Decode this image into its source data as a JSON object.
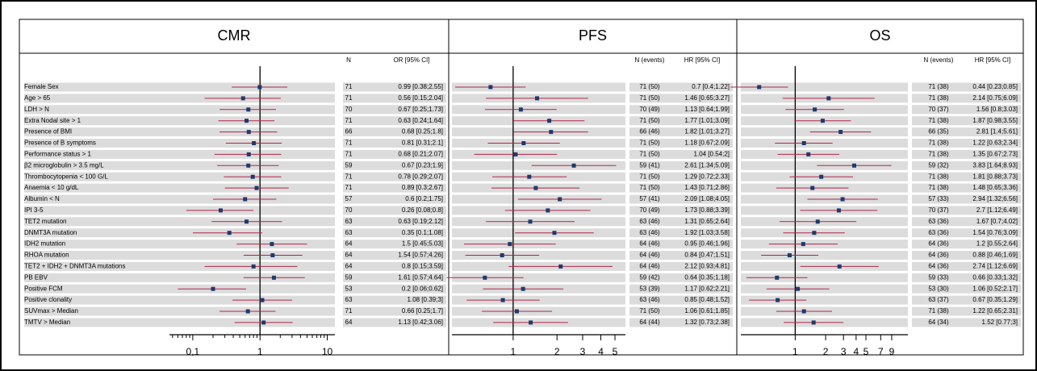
{
  "chart_data": [
    {
      "type": "forest",
      "title": "CMR",
      "column_headers": [
        "N",
        "OR [95% CI]"
      ],
      "log": true,
      "color": "#b0264a",
      "marker_color": "#1f3a6b",
      "categories": [
        "Female Sex",
        "Age > 65",
        "LDH > N",
        "Extra Nodal site > 1",
        "Presence of BMI",
        "Presence of B symptoms",
        "Performance status > 1",
        "β2 microglobulin > 3.5 mg/L",
        "Thrombocytopenia < 100 G/L",
        "Anaemia < 10 g/dL",
        "Albumin < N",
        "IPI 3-5",
        "TET2 mutation",
        "DNMT3A mutation",
        "IDH2 mutation",
        "RHOA mutation",
        "TET2 + IDH2 + DNMT3A mutations",
        "PB EBV",
        "Positive FCM",
        "Positive clonality",
        "SUVmax > Median",
        "TMTV > Median"
      ],
      "n": [
        71,
        71,
        70,
        71,
        66,
        71,
        71,
        59,
        71,
        71,
        57,
        70,
        63,
        63,
        64,
        64,
        64,
        59,
        53,
        63,
        71,
        64
      ],
      "values": [
        0.99,
        0.56,
        0.67,
        0.63,
        0.68,
        0.81,
        0.68,
        0.67,
        0.78,
        0.89,
        0.6,
        0.26,
        0.63,
        0.35,
        1.5,
        1.54,
        0.8,
        1.61,
        0.2,
        1.08,
        0.66,
        1.13
      ],
      "lower": [
        0.38,
        0.15,
        0.25,
        0.24,
        0.25,
        0.31,
        0.21,
        0.23,
        0.29,
        0.3,
        0.2,
        0.08,
        0.19,
        0.1,
        0.45,
        0.57,
        0.15,
        0.57,
        0.06,
        0.39,
        0.25,
        0.42
      ],
      "upper": [
        2.55,
        2.04,
        1.73,
        1.64,
        1.8,
        2.1,
        2.07,
        1.9,
        2.07,
        2.67,
        1.75,
        0.8,
        2.12,
        1.08,
        5.03,
        4.26,
        3.59,
        4.64,
        0.62,
        3,
        1.7,
        3.06
      ],
      "value_labels": [
        "0.99 [0.38;2.55]",
        "0.56 [0.15;2.04]",
        "0.67 [0.25;1.73]",
        "0.63 [0.24;1.64]",
        "0.68 [0.25;1.8]",
        "0.81 [0.31;2.1]",
        "0.68 [0.21;2.07]",
        "0.67 [0.23;1.9]",
        "0.78 [0.29;2.07]",
        "0.89 [0.3;2.67]",
        "0.6 [0.2;1.75]",
        "0.26 [0.08;0.8]",
        "0.63 [0.19;2.12]",
        "0.35 [0.1;1.08]",
        "1.5 [0.45;5.03]",
        "1.54 [0.57;4.26]",
        "0.8 [0.15;3.59]",
        "1.61 [0.57;4.64]",
        "0.2 [0.06;0.62]",
        "1.08 [0.39;3]",
        "0.66 [0.25;1.7]",
        "1.13 [0.42;3.06]"
      ],
      "xlim": [
        0.045,
        13
      ],
      "xticks": [
        {
          "value": 0.1,
          "label": "0,1"
        },
        1,
        10
      ],
      "minor_xticks": [
        0.05,
        0.06,
        0.07,
        0.08,
        0.09,
        0.2,
        0.3,
        0.4,
        0.5,
        0.6,
        0.7,
        0.8,
        0.9,
        2,
        3,
        4,
        5,
        6,
        7,
        8,
        9
      ]
    },
    {
      "type": "forest",
      "title": "PFS",
      "column_headers": [
        "N (events)",
        "HR [95% CI]"
      ],
      "log": true,
      "color": "#b0264a",
      "marker_color": "#1f3a6b",
      "n": [
        "71 (50)",
        "71 (50)",
        "70 (49)",
        "71 (50)",
        "66 (46)",
        "71 (50)",
        "71 (50)",
        "59 (41)",
        "71 (50)",
        "71 (50)",
        "57 (41)",
        "70 (49)",
        "63 (46)",
        "63 (46)",
        "64 (46)",
        "64 (46)",
        "64 (46)",
        "59 (42)",
        "53 (39)",
        "63 (46)",
        "71 (50)",
        "64 (44)"
      ],
      "values": [
        0.7,
        1.46,
        1.13,
        1.77,
        1.82,
        1.18,
        1.04,
        2.61,
        1.29,
        1.43,
        2.09,
        1.73,
        1.31,
        1.92,
        0.95,
        0.84,
        2.12,
        0.64,
        1.17,
        0.85,
        1.06,
        1.32
      ],
      "lower": [
        0.4,
        0.65,
        0.64,
        1.01,
        1.01,
        0.67,
        0.54,
        1.34,
        0.72,
        0.71,
        1.08,
        0.88,
        0.65,
        1.03,
        0.46,
        0.47,
        0.93,
        0.35,
        0.62,
        0.48,
        0.61,
        0.73
      ],
      "upper": [
        1.22,
        3.27,
        1.99,
        3.09,
        3.27,
        2.09,
        2,
        5.09,
        2.33,
        2.86,
        4.05,
        3.39,
        2.64,
        3.58,
        1.96,
        1.51,
        4.81,
        1.18,
        2.21,
        1.52,
        1.85,
        2.38
      ],
      "value_labels": [
        "0.7 [0.4;1.22]",
        "1.46 [0.65;3.27]",
        "1.13 [0.64;1.99]",
        "1.77 [1.01;3.09]",
        "1.82 [1.01;3.27]",
        "1.18 [0.67;2.09]",
        "1.04 [0.54;2]",
        "2.61 [1.34;5.09]",
        "1.29 [0.72;2.33]",
        "1.43 [0.71;2.86]",
        "2.09 [1.08;4.05]",
        "1.73 [0.88;3.39]",
        "1.31 [0.65;2.64]",
        "1.92 [1.03;3.58]",
        "0.95 [0.46;1.96]",
        "0.84 [0.47;1.51]",
        "2.12 [0.93;4.81]",
        "0.64 [0.35;1.18]",
        "1.17 [0.62;2.21]",
        "0.85 [0.48;1.52]",
        "1.06 [0.61;1.85]",
        "1.32 [0.73;2.38]"
      ],
      "xlim": [
        0.38,
        5.9
      ],
      "xticks": [
        1,
        2,
        3,
        4,
        5
      ]
    },
    {
      "type": "forest",
      "title": "OS",
      "column_headers": [
        "N (events)",
        "HR [95% CI]"
      ],
      "log": true,
      "color": "#b0264a",
      "marker_color": "#1f3a6b",
      "n": [
        "71 (38)",
        "71 (38)",
        "70 (37)",
        "71 (38)",
        "66 (35)",
        "71 (38)",
        "71 (38)",
        "59 (32)",
        "71 (38)",
        "71 (38)",
        "57 (33)",
        "70 (37)",
        "63 (36)",
        "63 (36)",
        "64 (36)",
        "64 (36)",
        "64 (36)",
        "59 (33)",
        "53 (30)",
        "63 (37)",
        "71 (38)",
        "64 (34)"
      ],
      "values": [
        0.44,
        2.14,
        1.56,
        1.87,
        2.81,
        1.22,
        1.35,
        3.83,
        1.81,
        1.48,
        2.94,
        2.7,
        1.67,
        1.54,
        1.2,
        0.88,
        2.74,
        0.66,
        1.06,
        0.67,
        1.22,
        1.52
      ],
      "lower": [
        0.23,
        0.75,
        0.8,
        0.98,
        1.4,
        0.63,
        0.67,
        1.64,
        0.88,
        0.65,
        1.32,
        1.12,
        0.7,
        0.76,
        0.55,
        0.46,
        1.12,
        0.33,
        0.52,
        0.35,
        0.65,
        0.77
      ],
      "upper": [
        0.85,
        6.09,
        3.03,
        3.55,
        5.61,
        2.34,
        2.73,
        8.93,
        3.73,
        3.36,
        6.56,
        6.49,
        4.02,
        3.09,
        2.64,
        1.69,
        6.69,
        1.32,
        2.17,
        1.29,
        2.31,
        3
      ],
      "value_labels": [
        "0.44 [0.23;0.85]",
        "2.14 [0.75;6.09]",
        "1.56 [0.8;3.03]",
        "1.87 [0.98;3.55]",
        "2.81 [1.4;5.61]",
        "1.22 [0.63;2.34]",
        "1.35 [0.67;2.73]",
        "3.83 [1.64;8.93]",
        "1.81 [0.88;3.73]",
        "1.48 [0.65;3.36]",
        "2.94 [1.32;6.56]",
        "2.7 [1.12;6.49]",
        "1.67 [0.7;4.02]",
        "1.54 [0.76;3.09]",
        "1.2 [0.55;2.64]",
        "0.88 [0.46;1.69]",
        "2.74 [1.12;6.69]",
        "0.66 [0.33;1.32]",
        "1.06 [0.52;2.17]",
        "0.67 [0.35;1.29]",
        "1.22 [0.65;2.31]",
        "1.52 [0.77;3]"
      ],
      "xlim": [
        0.29,
        13
      ],
      "xticks": [
        1,
        2,
        3,
        4,
        5,
        7,
        9
      ]
    }
  ]
}
